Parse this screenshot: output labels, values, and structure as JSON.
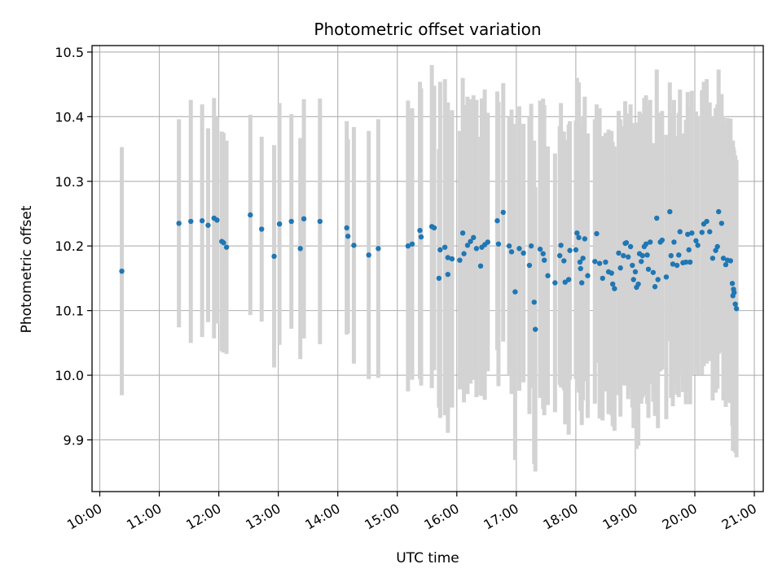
{
  "chart_data": {
    "type": "scatter",
    "title": "Photometric offset variation",
    "xlabel": "UTC time",
    "ylabel": "Photometric offset",
    "x_unit": "hour",
    "xlim": [
      9.87,
      21.15
    ],
    "ylim": [
      9.82,
      10.51
    ],
    "grid": true,
    "x_ticks": [
      10,
      11,
      12,
      13,
      14,
      15,
      16,
      17,
      18,
      19,
      20,
      21
    ],
    "x_tick_labels": [
      "10:00",
      "11:00",
      "12:00",
      "13:00",
      "14:00",
      "15:00",
      "16:00",
      "17:00",
      "18:00",
      "19:00",
      "20:00",
      "21:00"
    ],
    "y_ticks": [
      9.9,
      10.0,
      10.1,
      10.2,
      10.3,
      10.4,
      10.5
    ],
    "y_tick_labels": [
      "9.9",
      "10.0",
      "10.1",
      "10.2",
      "10.3",
      "10.4",
      "10.5"
    ],
    "colors": {
      "points": "#1f77b4",
      "errorbars": "#d3d3d3",
      "grid": "#b0b0b0",
      "axes": "#000000"
    },
    "series": [
      {
        "columns": [
          "time_h",
          "offset",
          "error"
        ],
        "values": [
          [
            10.37,
            10.161,
            0.192
          ],
          [
            11.33,
            10.235,
            0.161
          ],
          [
            11.53,
            10.238,
            0.188
          ],
          [
            11.72,
            10.239,
            0.18
          ],
          [
            11.82,
            10.232,
            0.15
          ],
          [
            11.92,
            10.243,
            0.186
          ],
          [
            11.97,
            10.24,
            0.16
          ],
          [
            12.05,
            10.207,
            0.17
          ],
          [
            12.08,
            10.205,
            0.17
          ],
          [
            12.13,
            10.198,
            0.165
          ],
          [
            12.53,
            10.248,
            0.155
          ],
          [
            12.72,
            10.226,
            0.143
          ],
          [
            12.93,
            10.184,
            0.172
          ],
          [
            13.02,
            10.234,
            0.187
          ],
          [
            13.22,
            10.238,
            0.166
          ],
          [
            13.37,
            10.196,
            0.171
          ],
          [
            13.43,
            10.242,
            0.185
          ],
          [
            13.7,
            10.238,
            0.19
          ],
          [
            14.15,
            10.228,
            0.165
          ],
          [
            14.17,
            10.215,
            0.15
          ],
          [
            14.27,
            10.201,
            0.183
          ],
          [
            14.52,
            10.186,
            0.192
          ],
          [
            14.68,
            10.196,
            0.2
          ],
          [
            15.18,
            10.2,
            0.225
          ],
          [
            15.25,
            10.203,
            0.21
          ],
          [
            15.38,
            10.224,
            0.23
          ],
          [
            15.4,
            10.214,
            0.23
          ],
          [
            15.58,
            10.23,
            0.25
          ],
          [
            15.62,
            10.228,
            0.22
          ],
          [
            15.7,
            10.15,
            0.2
          ],
          [
            15.72,
            10.194,
            0.26
          ],
          [
            15.8,
            10.198,
            0.26
          ],
          [
            15.85,
            10.156,
            0.245
          ],
          [
            15.85,
            10.182,
            0.24
          ],
          [
            15.92,
            10.18,
            0.23
          ],
          [
            16.05,
            10.178,
            0.2
          ],
          [
            16.1,
            10.22,
            0.24
          ],
          [
            16.12,
            10.188,
            0.23
          ],
          [
            16.18,
            10.201,
            0.23
          ],
          [
            16.23,
            10.207,
            0.22
          ],
          [
            16.28,
            10.213,
            0.22
          ],
          [
            16.33,
            10.196,
            0.23
          ],
          [
            16.4,
            10.169,
            0.2
          ],
          [
            16.42,
            10.198,
            0.23
          ],
          [
            16.47,
            10.202,
            0.24
          ],
          [
            16.52,
            10.206,
            0.2
          ],
          [
            16.68,
            10.239,
            0.2
          ],
          [
            16.7,
            10.203,
            0.22
          ],
          [
            16.78,
            10.252,
            0.2
          ],
          [
            16.88,
            10.2,
            0.2
          ],
          [
            16.92,
            10.191,
            0.22
          ],
          [
            16.98,
            10.129,
            0.26
          ],
          [
            17.05,
            10.196,
            0.22
          ],
          [
            17.12,
            10.189,
            0.2
          ],
          [
            17.22,
            10.17,
            0.23
          ],
          [
            17.25,
            10.2,
            0.22
          ],
          [
            17.3,
            10.113,
            0.25
          ],
          [
            17.32,
            10.071,
            0.22
          ],
          [
            17.4,
            10.195,
            0.23
          ],
          [
            17.45,
            10.188,
            0.24
          ],
          [
            17.47,
            10.178,
            0.24
          ],
          [
            17.53,
            10.154,
            0.2
          ],
          [
            17.65,
            10.143,
            0.2
          ],
          [
            17.73,
            10.185,
            0.2
          ],
          [
            17.75,
            10.201,
            0.22
          ],
          [
            17.8,
            10.177,
            0.2
          ],
          [
            17.82,
            10.144,
            0.22
          ],
          [
            17.88,
            10.148,
            0.24
          ],
          [
            17.9,
            10.193,
            0.2
          ],
          [
            18.0,
            10.194,
            0.2
          ],
          [
            18.02,
            10.22,
            0.24
          ],
          [
            18.05,
            10.213,
            0.24
          ],
          [
            18.07,
            10.175,
            0.2
          ],
          [
            18.08,
            10.165,
            0.22
          ],
          [
            18.1,
            10.143,
            0.22
          ],
          [
            18.12,
            10.181,
            0.22
          ],
          [
            18.15,
            10.211,
            0.22
          ],
          [
            18.2,
            10.154,
            0.22
          ],
          [
            18.32,
            10.176,
            0.22
          ],
          [
            18.35,
            10.219,
            0.2
          ],
          [
            18.4,
            10.173,
            0.24
          ],
          [
            18.45,
            10.15,
            0.22
          ],
          [
            18.5,
            10.175,
            0.2
          ],
          [
            18.55,
            10.16,
            0.22
          ],
          [
            18.6,
            10.158,
            0.22
          ],
          [
            18.62,
            10.141,
            0.22
          ],
          [
            18.65,
            10.134,
            0.22
          ],
          [
            18.72,
            10.189,
            0.22
          ],
          [
            18.75,
            10.166,
            0.23
          ],
          [
            18.8,
            10.185,
            0.2
          ],
          [
            18.83,
            10.204,
            0.22
          ],
          [
            18.85,
            10.205,
            0.2
          ],
          [
            18.88,
            10.183,
            0.22
          ],
          [
            18.92,
            10.199,
            0.22
          ],
          [
            18.95,
            10.17,
            0.22
          ],
          [
            18.97,
            10.148,
            0.23
          ],
          [
            19.0,
            10.16,
            0.23
          ],
          [
            19.02,
            10.136,
            0.25
          ],
          [
            19.05,
            10.141,
            0.25
          ],
          [
            19.07,
            10.188,
            0.22
          ],
          [
            19.1,
            10.176,
            0.22
          ],
          [
            19.12,
            10.185,
            0.22
          ],
          [
            19.15,
            10.199,
            0.23
          ],
          [
            19.18,
            10.203,
            0.23
          ],
          [
            19.2,
            10.186,
            0.23
          ],
          [
            19.22,
            10.164,
            0.23
          ],
          [
            19.25,
            10.206,
            0.22
          ],
          [
            19.3,
            10.159,
            0.2
          ],
          [
            19.33,
            10.137,
            0.2
          ],
          [
            19.36,
            10.243,
            0.23
          ],
          [
            19.38,
            10.148,
            0.23
          ],
          [
            19.42,
            10.206,
            0.2
          ],
          [
            19.45,
            10.209,
            0.2
          ],
          [
            19.52,
            10.152,
            0.22
          ],
          [
            19.58,
            10.253,
            0.2
          ],
          [
            19.6,
            10.185,
            0.22
          ],
          [
            19.63,
            10.172,
            0.22
          ],
          [
            19.65,
            10.206,
            0.22
          ],
          [
            19.7,
            10.17,
            0.2
          ],
          [
            19.73,
            10.186,
            0.22
          ],
          [
            19.75,
            10.222,
            0.22
          ],
          [
            19.8,
            10.174,
            0.2
          ],
          [
            19.85,
            10.175,
            0.22
          ],
          [
            19.88,
            10.218,
            0.22
          ],
          [
            19.9,
            10.194,
            0.22
          ],
          [
            19.92,
            10.175,
            0.22
          ],
          [
            19.95,
            10.22,
            0.22
          ],
          [
            20.02,
            10.208,
            0.2
          ],
          [
            20.05,
            10.201,
            0.2
          ],
          [
            20.12,
            10.221,
            0.22
          ],
          [
            20.15,
            10.234,
            0.22
          ],
          [
            20.2,
            10.238,
            0.22
          ],
          [
            20.25,
            10.222,
            0.2
          ],
          [
            20.3,
            10.181,
            0.22
          ],
          [
            20.35,
            10.193,
            0.22
          ],
          [
            20.38,
            10.199,
            0.22
          ],
          [
            20.4,
            10.253,
            0.22
          ],
          [
            20.45,
            10.235,
            0.2
          ],
          [
            20.48,
            10.181,
            0.22
          ],
          [
            20.52,
            10.171,
            0.22
          ],
          [
            20.55,
            10.178,
            0.22
          ],
          [
            20.6,
            10.177,
            0.22
          ],
          [
            20.63,
            10.142,
            0.22
          ],
          [
            20.64,
            10.123,
            0.24
          ],
          [
            20.65,
            10.133,
            0.22
          ],
          [
            20.66,
            10.128,
            0.22
          ],
          [
            20.68,
            10.11,
            0.23
          ],
          [
            20.7,
            10.103,
            0.23
          ]
        ]
      }
    ]
  }
}
